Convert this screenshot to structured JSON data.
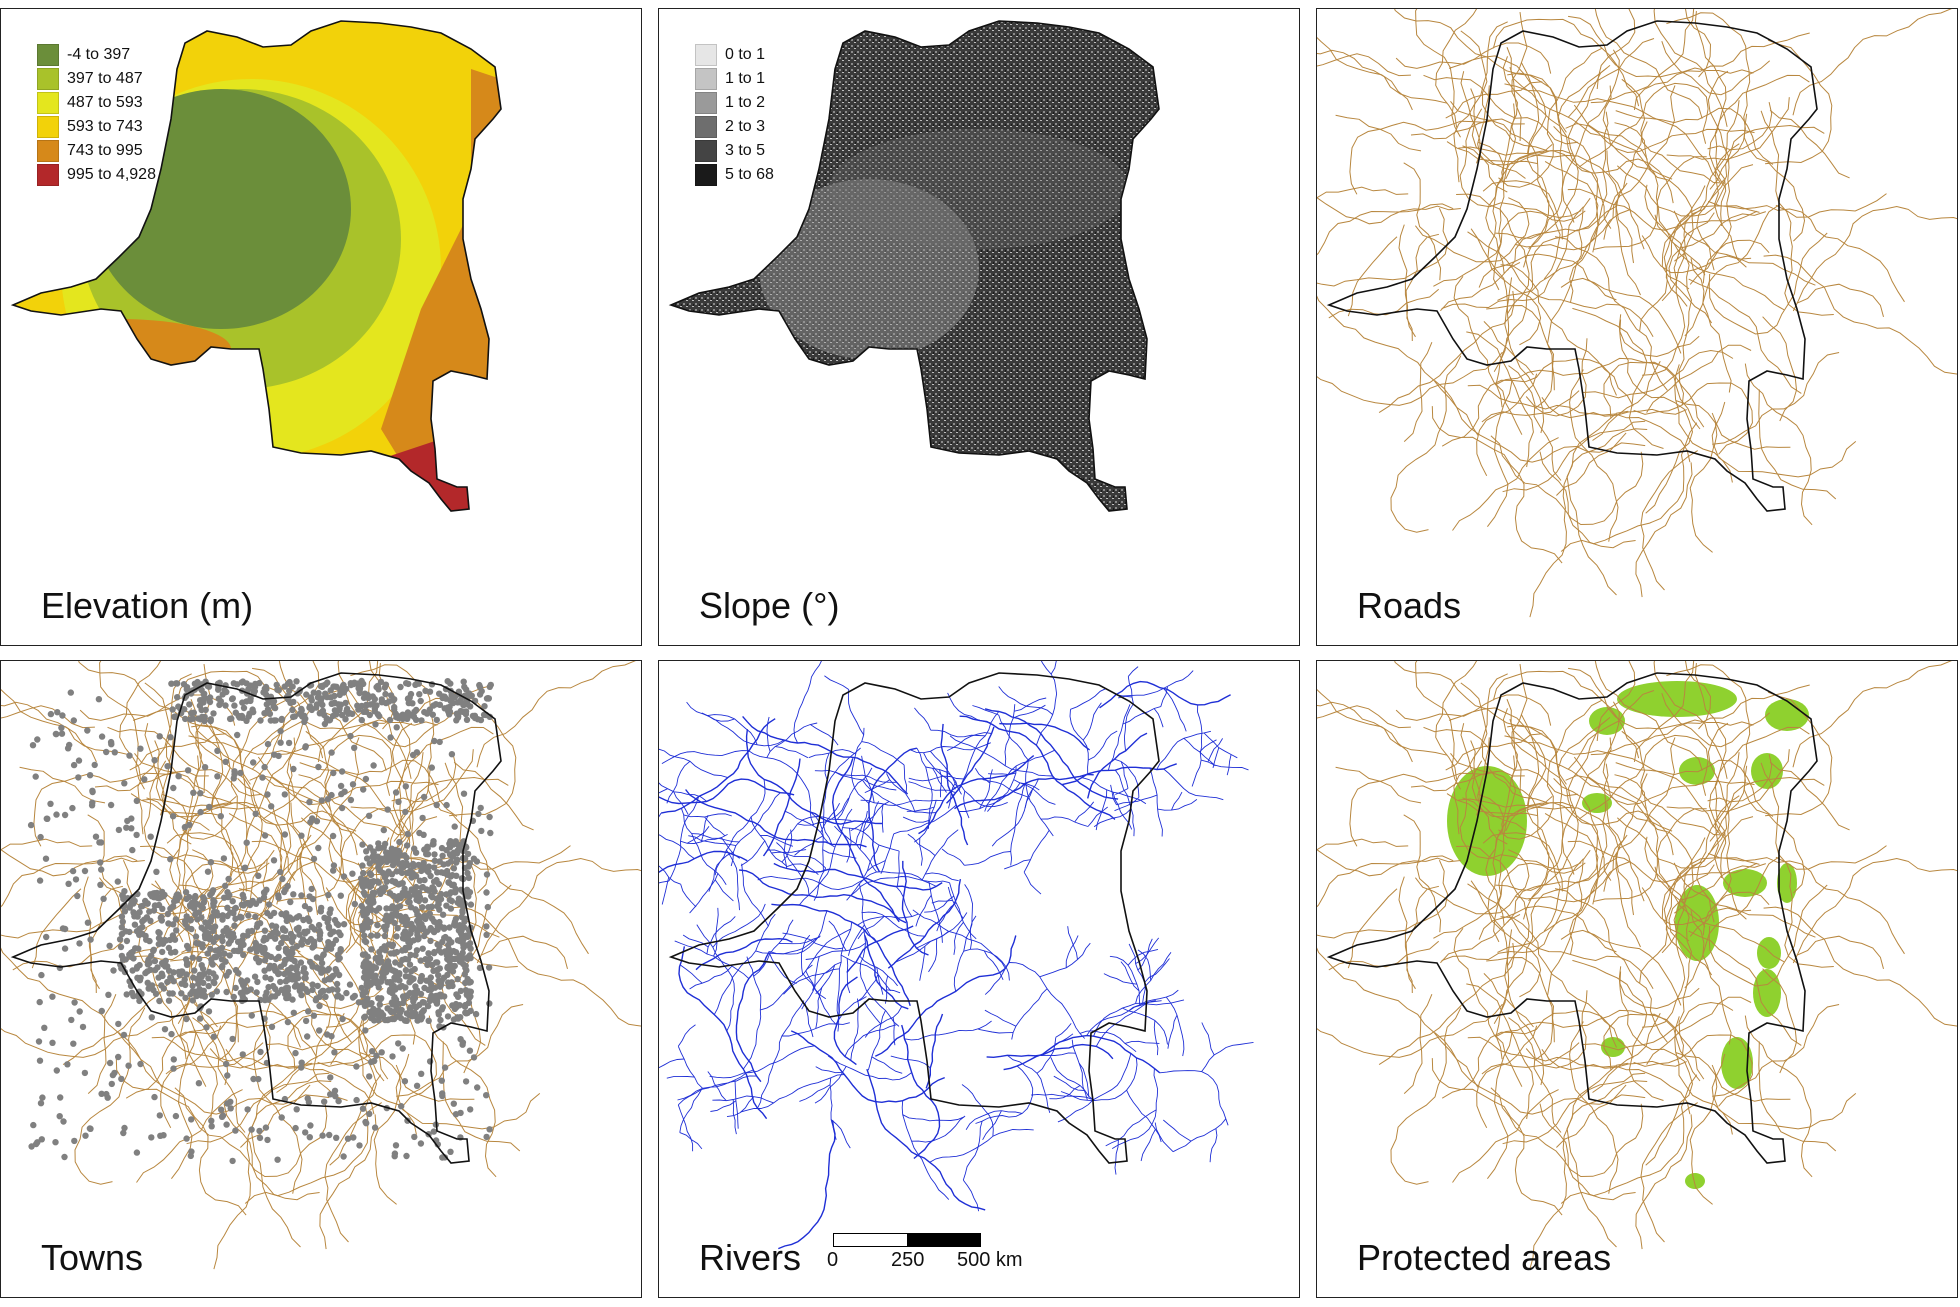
{
  "figure": {
    "panels": [
      {
        "id": "elevation",
        "title": "Elevation (m)"
      },
      {
        "id": "slope",
        "title": "Slope (°)"
      },
      {
        "id": "roads",
        "title": "Roads"
      },
      {
        "id": "towns",
        "title": "Towns"
      },
      {
        "id": "rivers",
        "title": "Rivers"
      },
      {
        "id": "protected",
        "title": "Protected areas"
      }
    ],
    "elevation_legend": [
      {
        "label": "-4 to 397",
        "color": "#6b8e3a"
      },
      {
        "label": "397 to 487",
        "color": "#a9c22a"
      },
      {
        "label": "487 to 593",
        "color": "#e4e61e"
      },
      {
        "label": "593 to 743",
        "color": "#f2d20a"
      },
      {
        "label": "743 to 995",
        "color": "#d6891a"
      },
      {
        "label": "995 to 4,928",
        "color": "#b3282a"
      }
    ],
    "slope_legend": [
      {
        "label": "0 to 1",
        "color": "#e6e6e6"
      },
      {
        "label": "1 to 1",
        "color": "#c4c4c4"
      },
      {
        "label": "1 to 2",
        "color": "#9a9a9a"
      },
      {
        "label": "2 to 3",
        "color": "#6e6e6e"
      },
      {
        "label": "3 to 5",
        "color": "#444444"
      },
      {
        "label": "5 to 68",
        "color": "#1a1a1a"
      }
    ],
    "scale_bar": {
      "ticks": [
        "0",
        "250",
        "500 km"
      ]
    },
    "colors": {
      "road": "#b8873f",
      "town": "#808080",
      "river": "#1f2fd6",
      "protected": "#8fd12f",
      "border": "#111111"
    }
  }
}
